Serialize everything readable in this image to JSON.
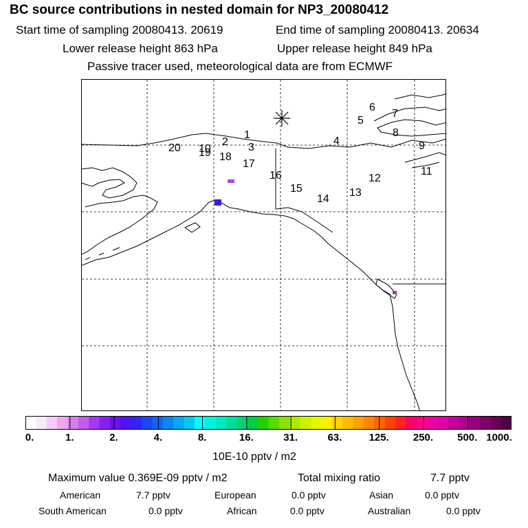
{
  "title": "BC  source contributions in nested domain for NP3_20080412",
  "header": {
    "start_time": "Start time of sampling 20080413. 20619",
    "end_time": "End time of sampling 20080413. 20634",
    "lower_release": "Lower release height  863 hPa",
    "upper_release": "Upper release height  849 hPa",
    "tracer_note": "Passive tracer used, meteorological data are from ECMWF"
  },
  "map": {
    "track_labels": [
      "1",
      "2",
      "3",
      "4",
      "5",
      "6",
      "7",
      "8",
      "9",
      "10",
      "11",
      "12",
      "13",
      "14",
      "15",
      "16",
      "17",
      "18",
      "19",
      "20"
    ],
    "release_marker": "asterisk-marker"
  },
  "colorbar": {
    "ticks": [
      "0.",
      "1.",
      "2.",
      "4.",
      "8.",
      "16.",
      "31.",
      "63.",
      "125.",
      "250.",
      "500.",
      "1000."
    ],
    "colors": [
      "#ffffff",
      "#fbeafb",
      "#f4ccf5",
      "#eaa8ee",
      "#d97fe8",
      "#c55bee",
      "#a638f0",
      "#8a1ff3",
      "#6d10f5",
      "#4d14f5",
      "#3223f7",
      "#1f45f6",
      "#1065f5",
      "#0888f3",
      "#07a8f2",
      "#06c8f1",
      "#00ffff",
      "#00f3dd",
      "#00e8bb",
      "#00dd99",
      "#00d477",
      "#00cc44",
      "#22d200",
      "#55dc00",
      "#88e400",
      "#aaec00",
      "#ccf200",
      "#e6f600",
      "#ffee00",
      "#ffd400",
      "#ffbb00",
      "#ffa000",
      "#ff8400",
      "#ff6600",
      "#ff4400",
      "#ff2222",
      "#ff0066",
      "#ff0088",
      "#f000a0",
      "#e000aa",
      "#c8009a",
      "#b0008c",
      "#98007c",
      "#80006a",
      "#680058",
      "#500046"
    ],
    "units": "10E-10 pptv / m2"
  },
  "stats": {
    "max_value": "Maximum value  0.369E-09 pptv / m2",
    "total_label": "Total mixing ratio",
    "total_value": "7.7 pptv",
    "contributions": [
      {
        "label": "American",
        "value": "7.7 pptv"
      },
      {
        "label": "European",
        "value": "0.0 pptv"
      },
      {
        "label": "Asian",
        "value": "0.0 pptv"
      },
      {
        "label": "South American",
        "value": "0.0 pptv"
      },
      {
        "label": "African",
        "value": "0.0 pptv"
      },
      {
        "label": "Australian",
        "value": "0.0 pptv"
      }
    ]
  }
}
